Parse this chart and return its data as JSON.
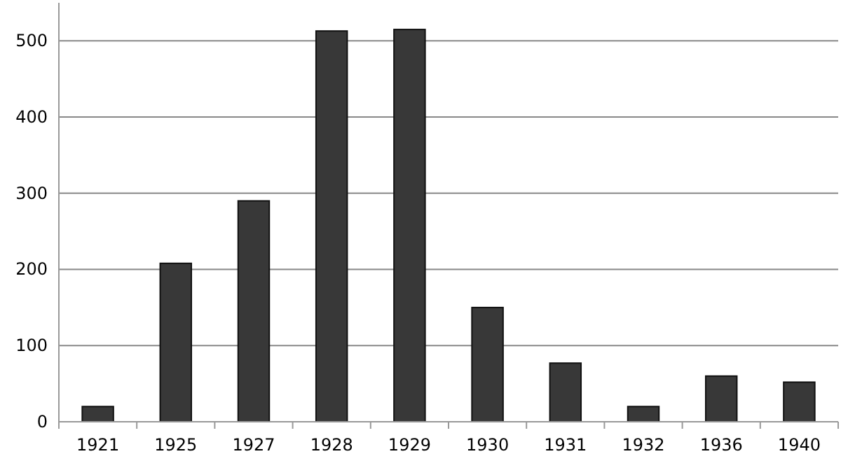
{
  "chart_data": {
    "type": "bar",
    "categories": [
      "1921",
      "1925",
      "1927",
      "1928",
      "1929",
      "1930",
      "1931",
      "1932",
      "1936",
      "1940"
    ],
    "values": [
      20,
      208,
      290,
      513,
      515,
      150,
      77,
      20,
      60,
      52
    ],
    "color": "#383838",
    "ylim": [
      0,
      550
    ],
    "yticks": [
      0,
      100,
      200,
      300,
      400,
      500
    ],
    "grid": "y"
  }
}
